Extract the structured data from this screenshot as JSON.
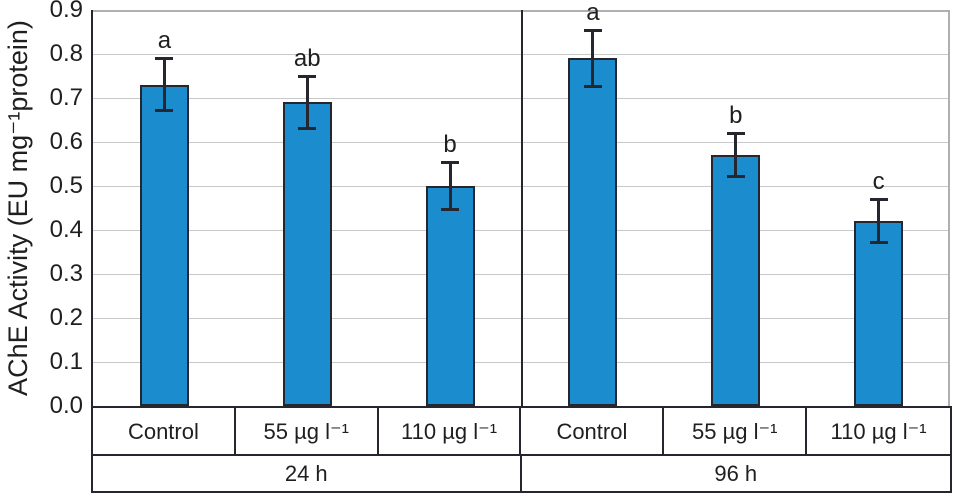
{
  "chart_data": {
    "type": "bar",
    "title": "",
    "xlabel": "",
    "ylabel": "AChE Activity (EU mg⁻¹protein)",
    "ylim": [
      0.0,
      0.9
    ],
    "ytick_step": 0.1,
    "yticks": [
      "0.0",
      "0.1",
      "0.2",
      "0.3",
      "0.4",
      "0.5",
      "0.6",
      "0.7",
      "0.8",
      "0.9"
    ],
    "grid": true,
    "legend": "none",
    "groups": [
      {
        "label": "24 h",
        "categories": [
          "Control",
          "55 µg l⁻¹",
          "110 µg l⁻¹"
        ],
        "values": [
          0.73,
          0.69,
          0.5
        ],
        "errors": [
          0.06,
          0.06,
          0.055
        ],
        "sig_letters": [
          "a",
          "ab",
          "b"
        ]
      },
      {
        "label": "96 h",
        "categories": [
          "Control",
          "55 µg l⁻¹",
          "110 µg l⁻¹"
        ],
        "values": [
          0.79,
          0.57,
          0.42
        ],
        "errors": [
          0.065,
          0.05,
          0.05
        ],
        "sig_letters": [
          "a",
          "b",
          "c"
        ]
      }
    ],
    "colors": {
      "bar_fill": "#1b8dce",
      "bar_border": "#26262e",
      "axis_line": "#26262e",
      "frame_line": "#b0b0b0",
      "gridline": "#c9c9c9",
      "text": "#1f1f1f"
    }
  }
}
